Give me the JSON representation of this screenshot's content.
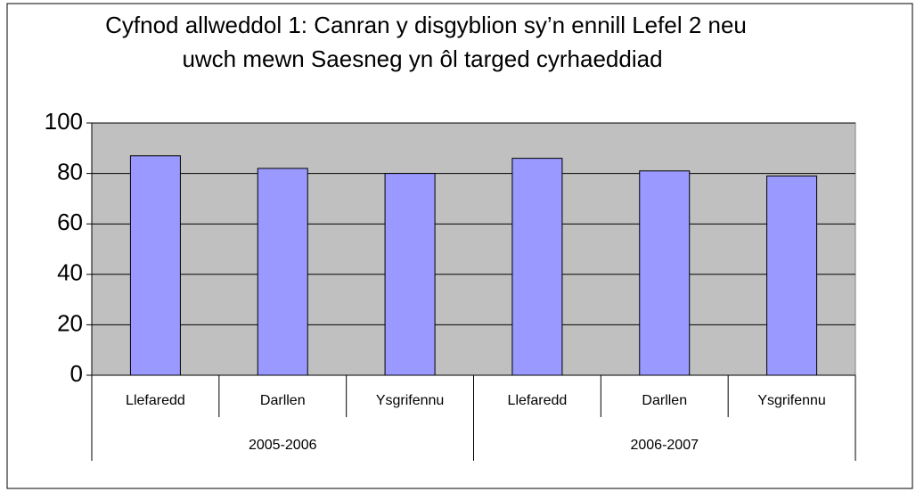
{
  "chart_data": {
    "type": "bar",
    "title": [
      "Cyfnod allweddol 1:  Canran y disgyblion sy’n ennill Lefel 2 neu",
      "uwch mewn Saesneg yn ôl targed cyrhaeddiad"
    ],
    "groups": [
      {
        "name": "2005-2006",
        "categories": [
          "Llefaredd",
          "Darllen",
          "Ysgrifennu"
        ],
        "values": [
          87,
          82,
          80
        ]
      },
      {
        "name": "2006-2007",
        "categories": [
          "Llefaredd",
          "Darllen",
          "Ysgrifennu"
        ],
        "values": [
          86,
          81,
          79
        ]
      }
    ],
    "color": "#9999ff",
    "ylim": [
      0,
      100
    ],
    "yticks": [
      0,
      20,
      40,
      60,
      80,
      100
    ],
    "grid": true
  }
}
